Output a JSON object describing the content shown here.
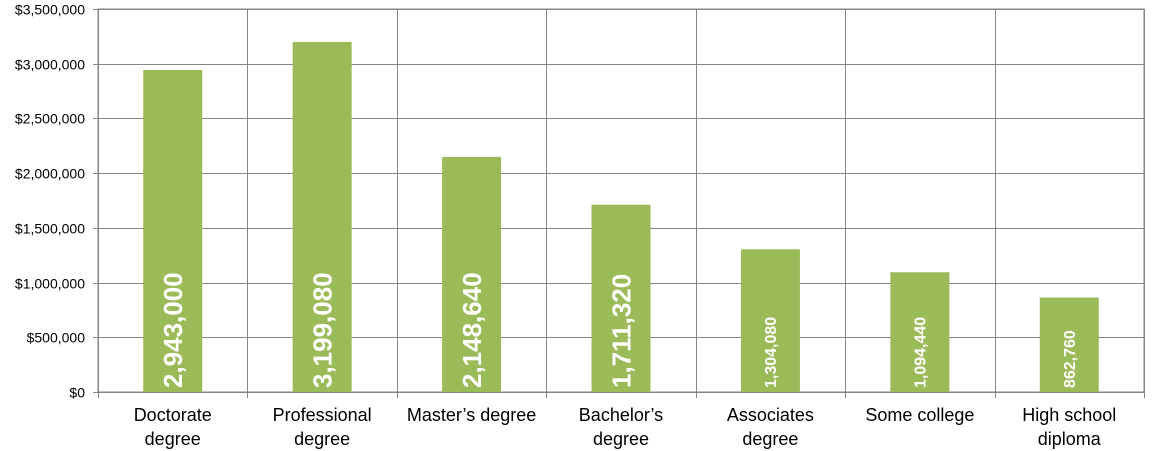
{
  "chart_data": {
    "type": "bar",
    "categories": [
      [
        "Doctorate",
        "degree"
      ],
      [
        "Professional",
        "degree"
      ],
      [
        "Master’s degree"
      ],
      [
        "Bachelor’s",
        "degree"
      ],
      [
        "Associates",
        "degree"
      ],
      [
        "Some college"
      ],
      [
        "High school",
        "diploma"
      ]
    ],
    "values": [
      2943000,
      3199080,
      2148640,
      1711320,
      1304080,
      1094440,
      862760
    ],
    "data_labels": [
      "2,943,000",
      "3,199,080",
      "2,148,640",
      "1,711,320",
      "1,304,080",
      "1,094,440",
      "862,760"
    ],
    "ylim": [
      0,
      3500000
    ],
    "yticks": [
      0,
      500000,
      1000000,
      1500000,
      2000000,
      2500000,
      3000000,
      3500000
    ],
    "ytick_labels": [
      "$0",
      "$500,000",
      "$1,000,000",
      "$1,500,000",
      "$2,000,000",
      "$2,500,000",
      "$3,000,000",
      "$3,500,000"
    ],
    "grid": true,
    "bar_color": "#9BBB59",
    "grid_color": "#868686"
  }
}
